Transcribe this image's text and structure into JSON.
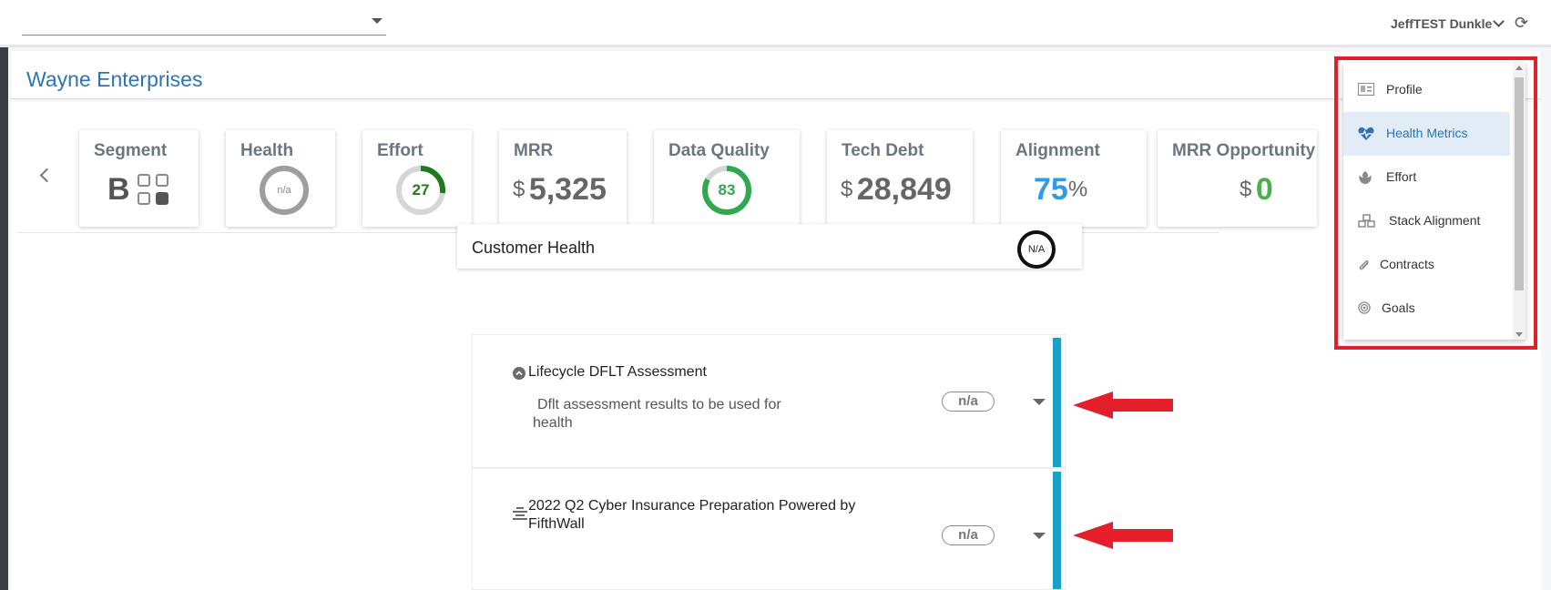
{
  "header": {
    "account_select_value": "",
    "user_name": "JeffTEST Dunkle"
  },
  "account": {
    "name": "Wayne Enterprises"
  },
  "metrics": {
    "segment": {
      "label": "Segment",
      "value": "B"
    },
    "health": {
      "label": "Health",
      "value": "n/a",
      "fill": 0,
      "color": "#9e9e9e"
    },
    "effort": {
      "label": "Effort",
      "value": "27",
      "fill": 0.27,
      "color": "#1f7a1f"
    },
    "mrr": {
      "label": "MRR",
      "currency": "$",
      "value": "5,325"
    },
    "data_quality": {
      "label": "Data Quality",
      "value": "83",
      "fill": 0.83,
      "color": "#2fa84f"
    },
    "tech_debt": {
      "label": "Tech Debt",
      "currency": "$",
      "value": "28,849"
    },
    "alignment": {
      "label": "Alignment",
      "value": "75",
      "unit": "%"
    },
    "mrr_opportunity": {
      "label": "MRR Opportunity",
      "currency": "$",
      "value": "0",
      "color": "#4caf50"
    }
  },
  "customer_health": {
    "title": "Customer Health",
    "score": "N/A",
    "items": [
      {
        "title": "Lifecycle DFLT Assessment",
        "description": "Dflt assessment results to be used for health",
        "score": "n/a",
        "icon": "chevron-up-circle-icon"
      },
      {
        "title": "2022 Q2 Cyber Insurance Preparation Powered by FifthWall",
        "description": "",
        "score": "n/a",
        "icon": "align-center-icon"
      }
    ]
  },
  "dropdown_menu": {
    "items": [
      {
        "label": "Profile",
        "icon": "id-card-icon",
        "active": false
      },
      {
        "label": "Health Metrics",
        "icon": "heartbeat-icon",
        "active": true
      },
      {
        "label": "Effort",
        "icon": "rebel-icon",
        "active": false
      },
      {
        "label": "Stack Alignment",
        "icon": "cubes-icon",
        "active": false
      },
      {
        "label": "Contracts",
        "icon": "paperclip-icon",
        "active": false
      },
      {
        "label": "Goals",
        "icon": "bullseye-icon",
        "active": false
      }
    ]
  },
  "colors": {
    "accent": "#2e74b5",
    "bar": "#1aa0c9",
    "annotation": "#e41f2a"
  }
}
